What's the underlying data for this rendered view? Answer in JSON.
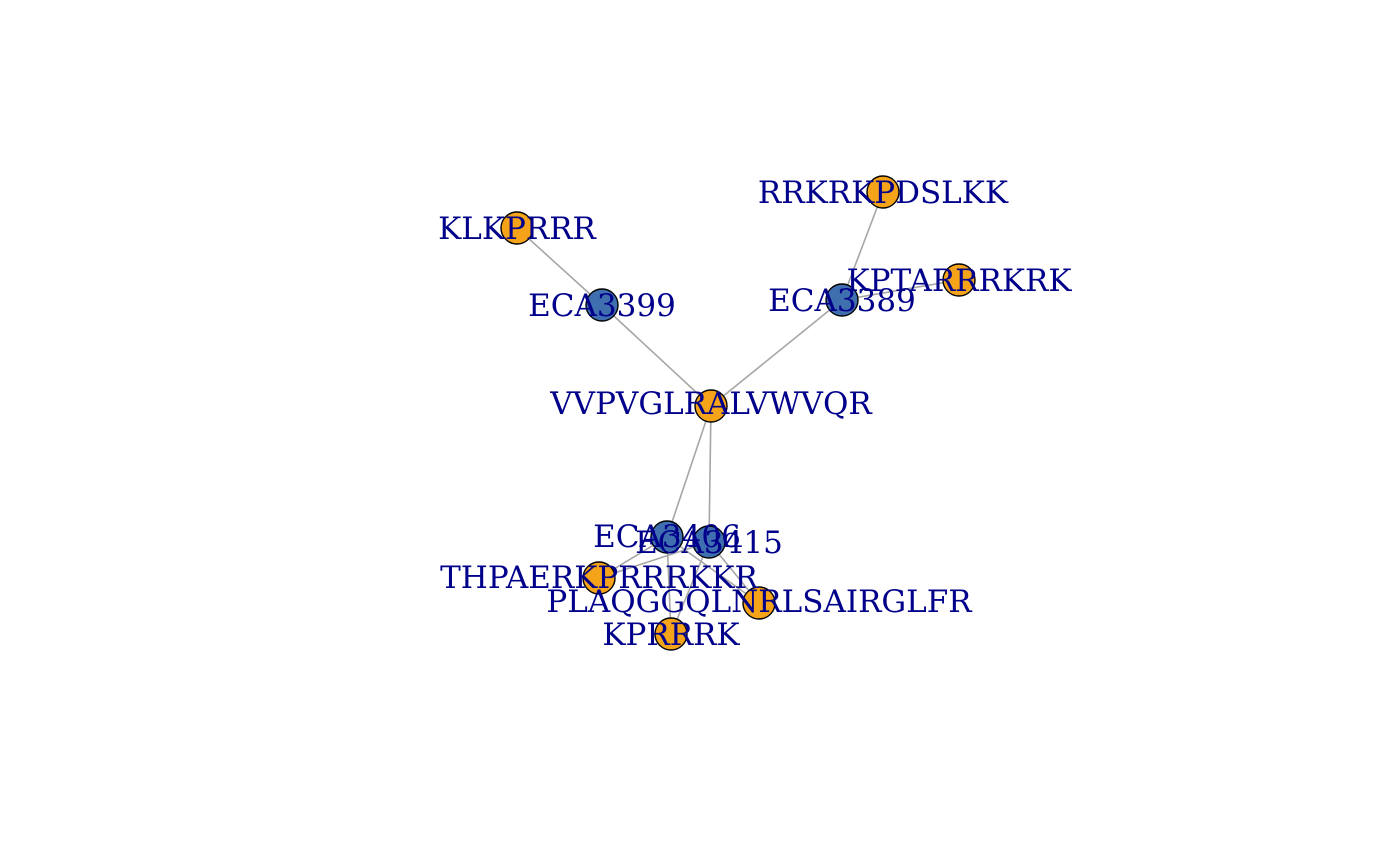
{
  "colors": {
    "peptide_node": "#f5a319",
    "protein_node": "#3f6faf",
    "label_text": "#00008b",
    "edge": "#a6a6a6"
  },
  "nodes": [
    {
      "id": "VVPVGLRALVWVQR",
      "label": "VVPVGLRALVWVQR",
      "kind": "peptide"
    },
    {
      "id": "ECA3399",
      "label": "ECA3399",
      "kind": "protein"
    },
    {
      "id": "ECA3389",
      "label": "ECA3389",
      "kind": "protein"
    },
    {
      "id": "KLKPRRR",
      "label": "KLKPRRR",
      "kind": "peptide"
    },
    {
      "id": "RRKRKPDSLKK",
      "label": "RRKRKPDSLKK",
      "kind": "peptide"
    },
    {
      "id": "KPTARRRKRK",
      "label": "KPTARRRKRK",
      "kind": "peptide"
    },
    {
      "id": "ECA3406",
      "label": "ECA3406",
      "kind": "protein"
    },
    {
      "id": "ECA3415",
      "label": "ECA3415",
      "kind": "protein"
    },
    {
      "id": "THPAERKPRRRKKR",
      "label": "THPAERKPRRRKKR",
      "kind": "peptide"
    },
    {
      "id": "PLAQGGQLNRLSAIRGLFR",
      "label": "PLAQGGQLNRLSAIRGLFR",
      "kind": "peptide"
    },
    {
      "id": "KPRRRK",
      "label": "KPRRRK",
      "kind": "peptide"
    }
  ],
  "edges": [
    [
      "KLKPRRR",
      "ECA3399"
    ],
    [
      "ECA3399",
      "VVPVGLRALVWVQR"
    ],
    [
      "RRKRKPDSLKK",
      "ECA3389"
    ],
    [
      "ECA3389",
      "KPTARRRKRK"
    ],
    [
      "ECA3389",
      "VVPVGLRALVWVQR"
    ],
    [
      "VVPVGLRALVWVQR",
      "ECA3406"
    ],
    [
      "VVPVGLRALVWVQR",
      "ECA3415"
    ],
    [
      "ECA3406",
      "THPAERKPRRRKKR"
    ],
    [
      "ECA3406",
      "PLAQGGQLNRLSAIRGLFR"
    ],
    [
      "ECA3406",
      "KPRRRK"
    ],
    [
      "ECA3415",
      "THPAERKPRRRKKR"
    ],
    [
      "ECA3415",
      "PLAQGGQLNRLSAIRGLFR"
    ],
    [
      "ECA3415",
      "KPRRRK"
    ]
  ]
}
